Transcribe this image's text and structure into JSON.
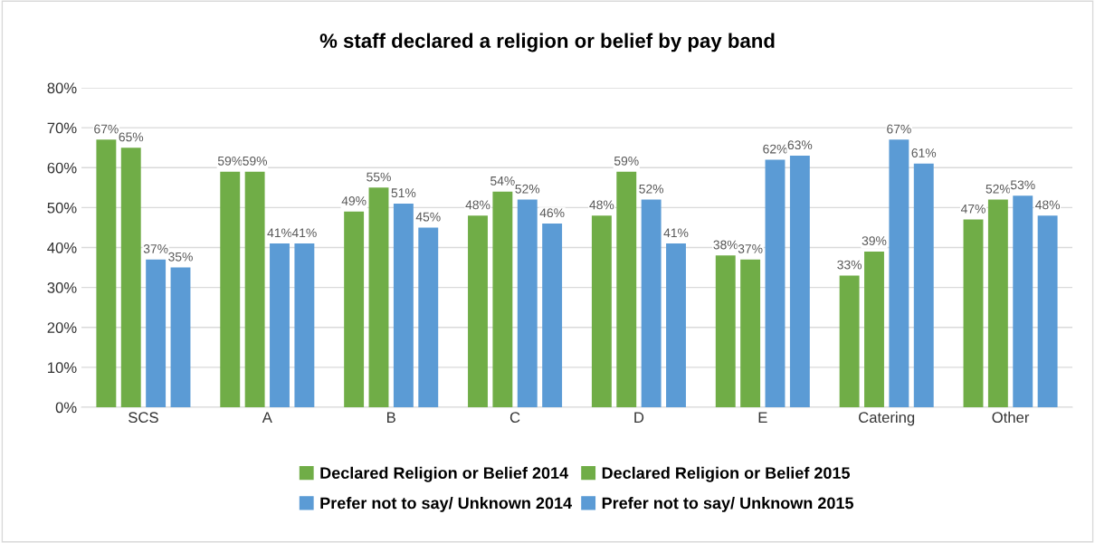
{
  "chart_data": {
    "type": "bar",
    "title": "% staff declared a religion or belief by pay band",
    "categories": [
      "SCS",
      "A",
      "B",
      "C",
      "D",
      "E",
      "Catering",
      "Other"
    ],
    "series": [
      {
        "name": "Declared Religion or Belief 2014",
        "color": "#70ad47",
        "values": [
          67,
          59,
          49,
          48,
          48,
          38,
          33,
          47
        ],
        "value_labels": [
          "67%",
          "59%",
          "49%",
          "48%",
          "48%",
          "38%",
          "33%",
          "47%"
        ]
      },
      {
        "name": "Declared Religion or Belief 2015",
        "color": "#70ad47",
        "values": [
          65,
          59,
          55,
          54,
          59,
          37,
          39,
          52
        ],
        "value_labels": [
          "65%",
          "59%",
          "55%",
          "54%",
          "59%",
          "37%",
          "39%",
          "52%"
        ]
      },
      {
        "name": "Prefer not to say/ Unknown 2014",
        "color": "#5b9bd5",
        "values": [
          37,
          41,
          51,
          52,
          52,
          62,
          67,
          53
        ],
        "value_labels": [
          "37%",
          "41%",
          "51%",
          "52%",
          "52%",
          "62%",
          "67%",
          "53%"
        ]
      },
      {
        "name": "Prefer not to say/ Unknown 2015",
        "color": "#5b9bd5",
        "values": [
          35,
          41,
          45,
          46,
          41,
          63,
          61,
          48
        ],
        "value_labels": [
          "35%",
          "41%",
          "45%",
          "46%",
          "41%",
          "63%",
          "61%",
          "48%"
        ]
      }
    ],
    "ylim": [
      0,
      80
    ],
    "yticks": [
      {
        "value": 0,
        "label": "0%"
      },
      {
        "value": 10,
        "label": "10%"
      },
      {
        "value": 20,
        "label": "20%"
      },
      {
        "value": 30,
        "label": "30%"
      },
      {
        "value": 40,
        "label": "40%"
      },
      {
        "value": 50,
        "label": "50%"
      },
      {
        "value": 60,
        "label": "60%"
      },
      {
        "value": 70,
        "label": "70%"
      },
      {
        "value": 80,
        "label": "80%"
      }
    ],
    "grid": "y",
    "legend": "bottom"
  }
}
